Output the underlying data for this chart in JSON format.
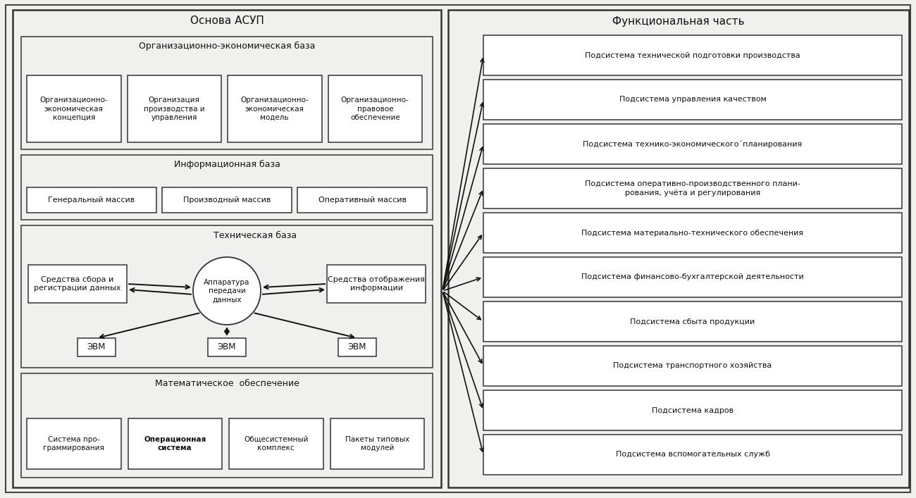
{
  "bg_color": "#f0f0ee",
  "panel_bg": "#f0f0ee",
  "box_fc": "#ffffff",
  "text_color": "#111111",
  "left_title": "Основа АСУП",
  "right_title": "Функциональная часть",
  "org_base_title": "Организационно-экономическая база",
  "org_boxes": [
    "Организационно-\nэкономическая\nконцепция",
    "Организация\nпроизводства и\nуправления",
    "Организационно-\nэкономическая\nмодель",
    "Организационно-\nправовое\nобеспечение"
  ],
  "info_base_title": "Информационная база",
  "info_boxes": [
    "Генеральный массив",
    "Производный массив",
    "Оперативный массив"
  ],
  "tech_base_title": "Техническая база",
  "tech_left_box": "Средства сбора и\nрегистрации данных",
  "tech_right_box": "Средства отображения\nинформации",
  "tech_center": "Аппаратура\nпередачи\nданных",
  "evm_labels": [
    "ЭВМ",
    "ЭВМ",
    "ЭВМ"
  ],
  "math_base_title": "Математическое  обеспечение",
  "math_boxes": [
    "Система про-\nграммирования",
    "Операционная\nсистема",
    "Общесистемный\nкомплекс",
    "Пакеты типовых\nмодулей"
  ],
  "math_bold": [
    false,
    true,
    false,
    false
  ],
  "right_boxes": [
    "Подсистема технической подготовки производства",
    "Подсистема управления качеством",
    "Подсистема технико-экономического´планирования",
    "Подсистема оперативно-производственного плани-\nрования, учёта и регулирования",
    "Подсистема материально-технического обеспечения",
    "Подсистема финансово-бухгалтерской деятельности",
    "Подсистема сбыта продукции",
    "Подсистема транспортного хозяйства",
    "Подсистема кадров",
    "Подсистема вспомогательных служб"
  ],
  "outer_lw": 1.8,
  "inner_lw": 1.1
}
